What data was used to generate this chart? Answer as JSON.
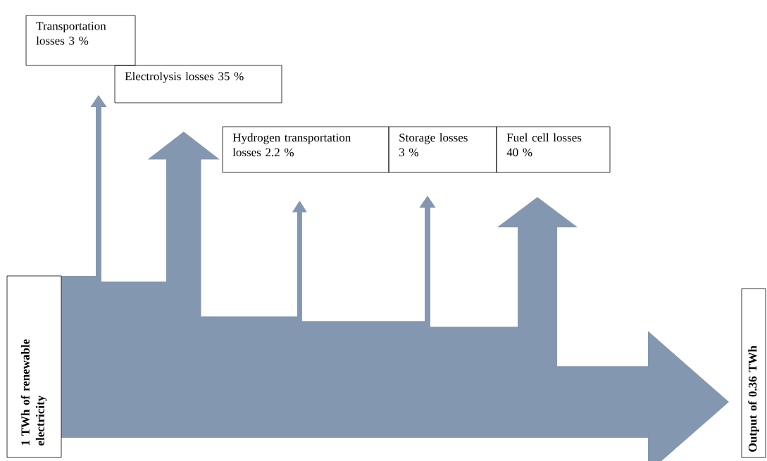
{
  "chart_data": {
    "type": "other",
    "categories": [
      "Transportation losses",
      "Electrolysis losses",
      "Hydrogen transportation losses",
      "Storage losses",
      "Fuel cell losses"
    ],
    "values": [
      3,
      35,
      2.2,
      3,
      40
    ],
    "value_labels": [
      "3 %",
      "35 %",
      "2.2 %",
      "3 %",
      "40 %"
    ],
    "color": "#8497b0",
    "annotations": [
      "1 TWh of renewable electricity",
      "Output of 0.36 TWh"
    ]
  }
}
